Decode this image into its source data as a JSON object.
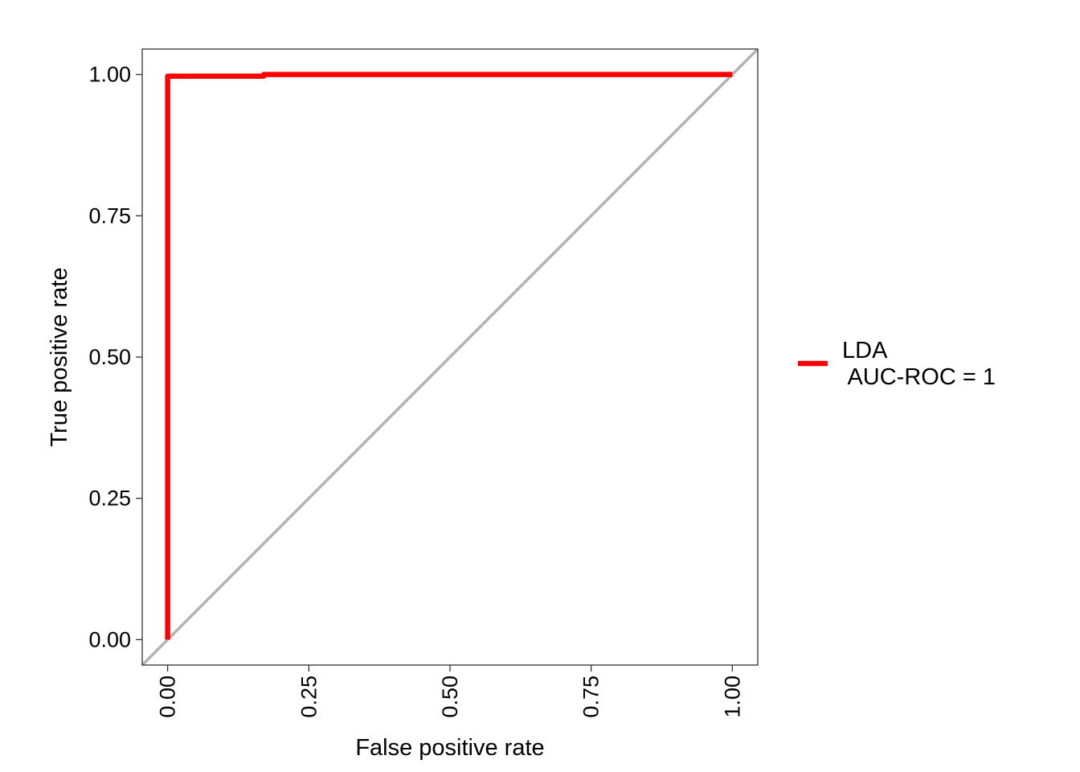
{
  "chart_data": {
    "type": "line",
    "title": "",
    "xlabel": "False positive rate",
    "ylabel": "True positive rate",
    "xlim": [
      -0.045,
      1.045
    ],
    "ylim": [
      -0.045,
      1.045
    ],
    "x_ticks": [
      0,
      0.25,
      0.5,
      0.75,
      1
    ],
    "x_tick_labels": [
      "0.00",
      "0.25",
      "0.50",
      "0.75",
      "1.00"
    ],
    "y_ticks": [
      0,
      0.25,
      0.5,
      0.75,
      1
    ],
    "y_tick_labels": [
      "0.00",
      "0.25",
      "0.50",
      "0.75",
      "1.00"
    ],
    "x_tick_rotation": -90,
    "grid": false,
    "legend_position": "right",
    "series": [
      {
        "name": "LDA\n AUC-ROC = 1",
        "legend_lines": [
          "LDA",
          " AUC-ROC = 1"
        ],
        "color": "#ff0000",
        "points": [
          [
            0,
            0
          ],
          [
            0,
            0.997
          ],
          [
            0.17,
            0.997
          ],
          [
            0.17,
            1
          ],
          [
            1,
            1
          ]
        ]
      }
    ],
    "reference_line": {
      "color": "#b3b3b3",
      "points": [
        [
          -0.045,
          -0.045
        ],
        [
          1.045,
          1.045
        ]
      ]
    }
  }
}
